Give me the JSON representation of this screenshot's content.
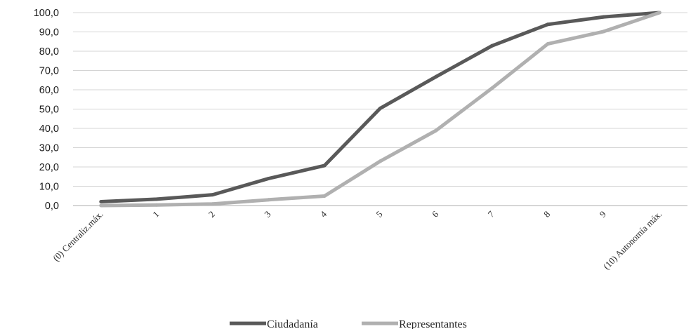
{
  "chart_data": {
    "type": "line",
    "title": "",
    "xlabel": "",
    "ylabel": "",
    "categories": [
      "(0) Centraliz.máx.",
      "1",
      "2",
      "3",
      "4",
      "5",
      "6",
      "7",
      "8",
      "9",
      "(10) Autonomía máx."
    ],
    "y_tick_labels": [
      "0,0",
      "10,0",
      "20,0",
      "30,0",
      "40,0",
      "50,0",
      "60,0",
      "70,0",
      "80,0",
      "90,0",
      "100,0"
    ],
    "ylim": [
      0,
      100
    ],
    "grid": true,
    "legend_position": "bottom",
    "series": [
      {
        "name": "Ciudadanía",
        "color": "#595959",
        "values": [
          2.0,
          3.3,
          5.6,
          14.0,
          20.7,
          50.4,
          66.8,
          82.8,
          93.9,
          97.8,
          100.0
        ]
      },
      {
        "name": "Representantes",
        "color": "#b0b0b0",
        "values": [
          0.0,
          0.3,
          0.8,
          3.0,
          4.9,
          23.0,
          38.9,
          60.8,
          83.8,
          90.2,
          100.0
        ]
      }
    ]
  }
}
